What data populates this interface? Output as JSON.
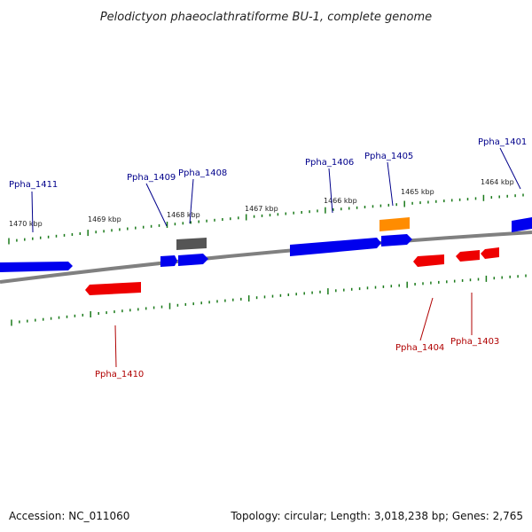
{
  "title": "Pelodictyon phaeoclathratiforme BU-1, complete genome",
  "footer": {
    "accession": "Accession: NC_011060",
    "summary": "Topology: circular; Length: 3,018,238 bp; Genes: 2,765"
  },
  "colors": {
    "forward_gene": "#0000ee",
    "reverse_gene": "#ee0000",
    "rna_gene": "#ff8c00",
    "other_feature": "#555555",
    "backbone": "#808080",
    "tick": "#1a7a1a",
    "forward_label": "#00008b",
    "reverse_label": "#b00000"
  },
  "scale": {
    "unit": "kbp",
    "tick_labels": [
      "1470 kbp",
      "1469 kbp",
      "1468 kbp",
      "1467 kbp",
      "1466 kbp",
      "1465 kbp",
      "1464 kbp"
    ]
  },
  "labels": {
    "Ppha_1411": "Ppha_1411",
    "Ppha_1409": "Ppha_1409",
    "Ppha_1408": "Ppha_1408",
    "Ppha_1406": "Ppha_1406",
    "Ppha_1405": "Ppha_1405",
    "Ppha_1401": "Ppha_1401",
    "Ppha_1410": "Ppha_1410",
    "Ppha_1404": "Ppha_1404",
    "Ppha_1403": "Ppha_1403"
  }
}
